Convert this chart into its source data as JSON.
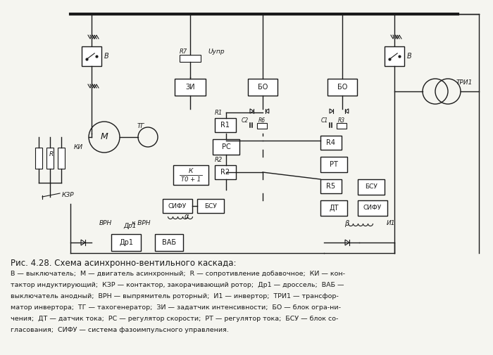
{
  "title": "Рис. 4.28. Схема асинхронно-вентильного каскада:",
  "caption_lines": [
    "В — выключатель;  М — двигатель асинхронный;  R — сопротивление добавочное;  КИ — кон-",
    "тактор индуктирующий;  КЗР — контактор, закорачивающий ротор;  Др1 — дроссель;  ВАБ —",
    "выключатель анодный;  ВРН — выпрямитель роторный;  И1 — инвертор;  ТРИ1 — трансфор-",
    "матор инвертора;  ТГ — тахогенератор;  ЗИ — задатчик интенсивности;  БО — блок огра-ни-",
    "чения;  ДТ — датчик тока;  РС — регулятор скорости;  РТ — регулятор тока;  БСУ — блок со-",
    "гласования;  СИФУ — система фазоимпульсного управления."
  ],
  "bg_color": "#f5f5f0",
  "line_color": "#1a1a1a",
  "box_color": "#1a1a1a",
  "box_fill": "#ffffff"
}
